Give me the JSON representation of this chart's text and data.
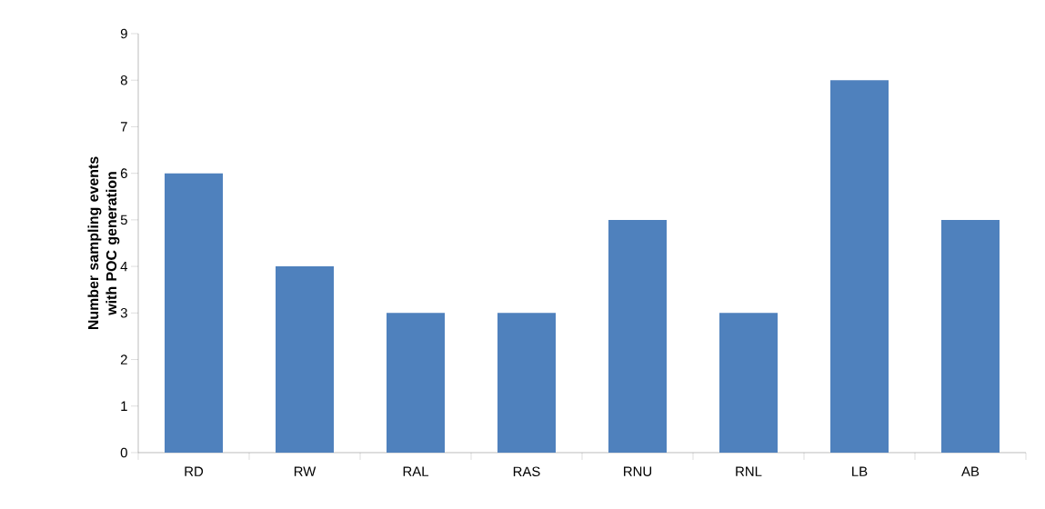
{
  "chart_data": {
    "type": "bar",
    "ylabel": "Number sampling events with POC generation",
    "categories": [
      "RD",
      "RW",
      "RAL",
      "RAS",
      "RNU",
      "RNL",
      "LB",
      "AB"
    ],
    "values": [
      6,
      4,
      3,
      3,
      5,
      3,
      8,
      5
    ],
    "color": "#4f81bd",
    "ylim": [
      0,
      9
    ],
    "yticks": [
      0,
      1,
      2,
      3,
      4,
      5,
      6,
      7,
      8,
      9
    ]
  }
}
